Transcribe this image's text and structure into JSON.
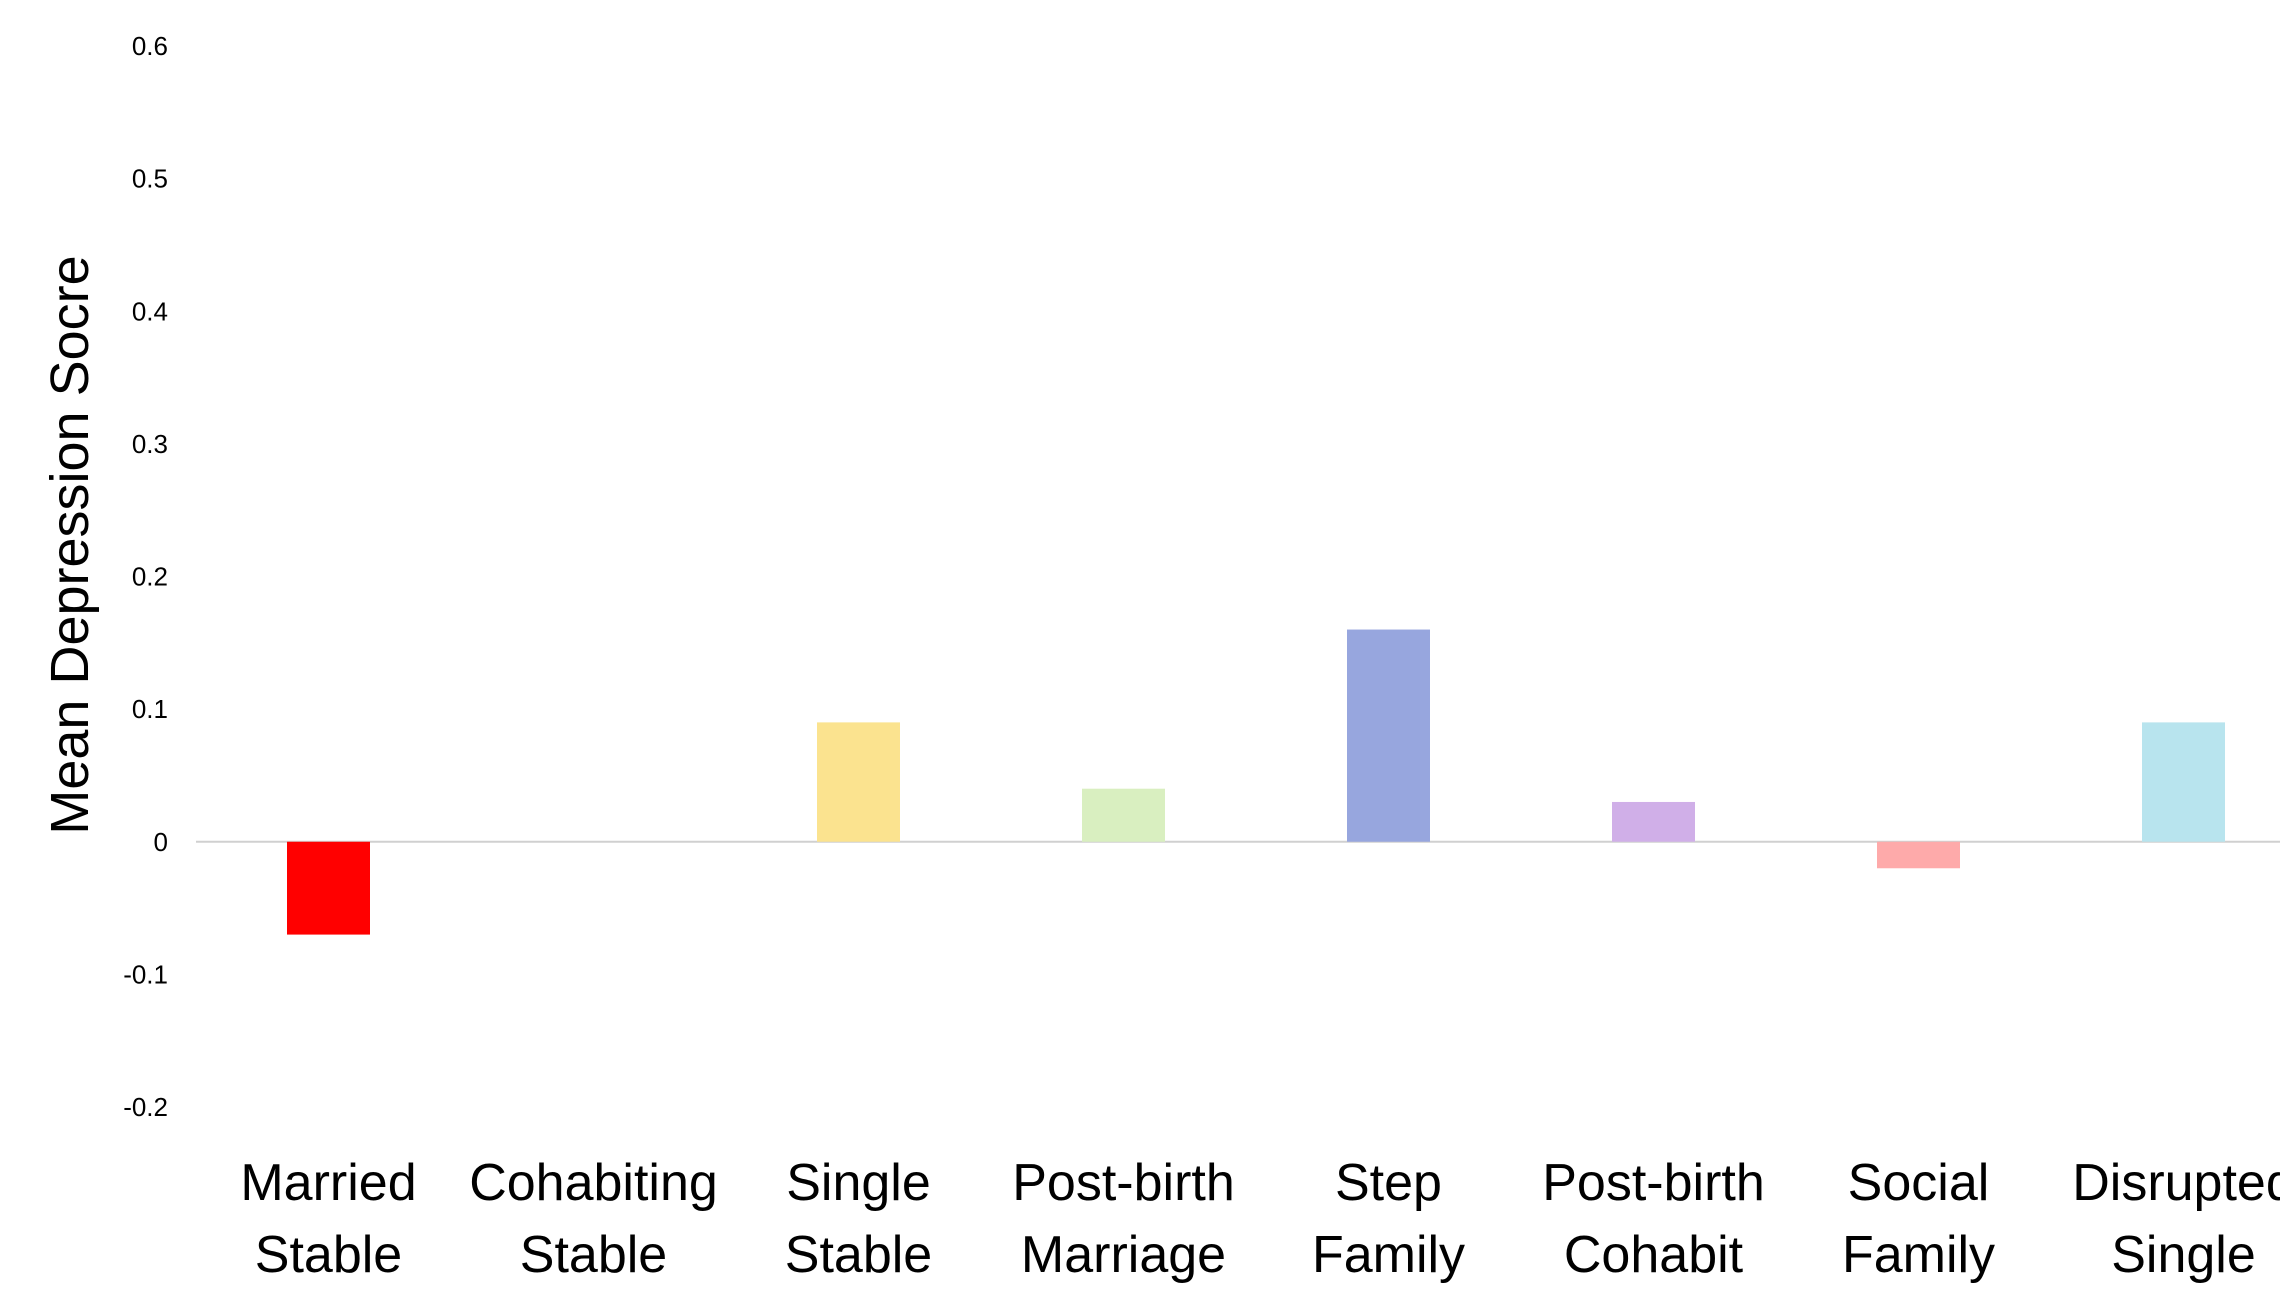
{
  "chart_data": {
    "type": "bar",
    "title": "",
    "xlabel": "",
    "ylabel": "Mean Depression Socre",
    "ylim": [
      -0.2,
      0.6
    ],
    "yticks": [
      "0.6",
      "0.5",
      "0.4",
      "0.3",
      "0.2",
      "0.1",
      "0",
      "-0.1",
      "-0.2"
    ],
    "ytick_values": [
      0.6,
      0.5,
      0.4,
      0.3,
      0.2,
      0.1,
      0,
      -0.1,
      -0.2
    ],
    "grid": false,
    "legend": "none",
    "categories": [
      [
        "Married",
        "Stable"
      ],
      [
        "Cohabiting",
        "Stable"
      ],
      [
        "Single",
        "Stable"
      ],
      [
        "Post-birth",
        "Marriage"
      ],
      [
        "Step",
        "Family"
      ],
      [
        "Post-birth",
        "Cohabit"
      ],
      [
        "Social",
        "Family"
      ],
      [
        "Disrupted",
        "Single"
      ]
    ],
    "values": [
      -0.07,
      0,
      0.09,
      0.04,
      0.16,
      0.03,
      -0.02,
      0.09
    ],
    "colors": [
      "#ff0000",
      "#ffffff",
      "#fbe38f",
      "#d9efc0",
      "#97a6de",
      "#d0afe8",
      "#feaaaa",
      "#b8e4ee"
    ],
    "zero_line_color": "#d0d0d0"
  }
}
